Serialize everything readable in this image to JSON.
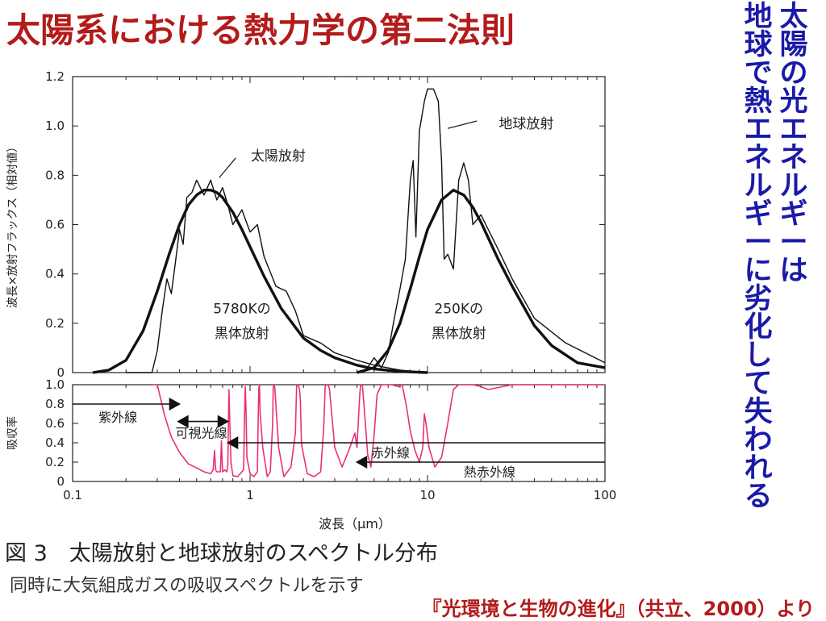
{
  "slide": {
    "title": "太陽系における熱力学の第二法則",
    "vertical_col1": "太陽の光エネルギーは",
    "vertical_col2": "地球で熱エネルギーに劣化して失われる",
    "caption_main": "図 3　太陽放射と地球放射のスペクトル分布",
    "caption_sub": "同時に大気組成ガスの吸収スペクトルを示す",
    "source": "『光環境と生物の進化』（共立、2000）より"
  },
  "colors": {
    "title": "#b31b1b",
    "vertical": "#1a1aa8",
    "absorption": "#e8307a",
    "curves": "#111111"
  },
  "chart_data": [
    {
      "type": "line",
      "x_scale": "log",
      "xlim": [
        0.1,
        100
      ],
      "ylim": [
        0,
        1.2
      ],
      "ylabel": "波長×放射フラックス（相対値）",
      "y_ticks": [
        "0",
        "0.2",
        "0.4",
        "0.6",
        "0.8",
        "1.0",
        "1.2"
      ],
      "annotations": [
        {
          "text": "太陽放射",
          "x": 1.6,
          "y": 0.86
        },
        {
          "text": "地球放射",
          "x": 36,
          "y": 0.99
        },
        {
          "text": "5780Kの",
          "x": 0.9,
          "y": 0.24
        },
        {
          "text": "黒体放射",
          "x": 0.9,
          "y": 0.14
        },
        {
          "text": "250Kの",
          "x": 15,
          "y": 0.24
        },
        {
          "text": "黒体放射",
          "x": 15,
          "y": 0.14
        }
      ],
      "series": [
        {
          "name": "5780Kの黒体放射",
          "style": "thick",
          "x": [
            0.13,
            0.16,
            0.2,
            0.25,
            0.3,
            0.35,
            0.4,
            0.45,
            0.5,
            0.55,
            0.6,
            0.65,
            0.7,
            0.8,
            0.9,
            1.0,
            1.2,
            1.5,
            2.0,
            2.5,
            3.0,
            4.0,
            5.0,
            7.0,
            10.0
          ],
          "y": [
            0.0,
            0.01,
            0.05,
            0.17,
            0.33,
            0.48,
            0.6,
            0.68,
            0.72,
            0.74,
            0.74,
            0.73,
            0.71,
            0.65,
            0.58,
            0.51,
            0.39,
            0.26,
            0.14,
            0.09,
            0.06,
            0.03,
            0.015,
            0.005,
            0.0
          ]
        },
        {
          "name": "太陽放射",
          "style": "thin",
          "x": [
            0.2,
            0.25,
            0.28,
            0.3,
            0.32,
            0.34,
            0.36,
            0.38,
            0.4,
            0.42,
            0.44,
            0.47,
            0.5,
            0.55,
            0.6,
            0.65,
            0.7,
            0.75,
            0.8,
            0.9,
            1.0,
            1.1,
            1.2,
            1.4,
            1.6,
            1.8,
            2.0,
            2.5,
            3.0,
            4.0,
            5.0,
            7.0,
            10.0
          ],
          "y": [
            0.0,
            0.0,
            0.0,
            0.09,
            0.25,
            0.38,
            0.32,
            0.45,
            0.58,
            0.52,
            0.71,
            0.73,
            0.78,
            0.72,
            0.78,
            0.7,
            0.75,
            0.68,
            0.6,
            0.66,
            0.57,
            0.6,
            0.47,
            0.35,
            0.33,
            0.25,
            0.15,
            0.12,
            0.08,
            0.05,
            0.03,
            0.01,
            0.0
          ]
        },
        {
          "name": "250Kの黒体放射",
          "style": "thick",
          "x": [
            4.0,
            5.0,
            6.0,
            7.0,
            8.0,
            9.0,
            10.0,
            12.0,
            14.0,
            16.0,
            18.0,
            20.0,
            25.0,
            30.0,
            40.0,
            50.0,
            70.0,
            100.0
          ],
          "y": [
            0.0,
            0.02,
            0.09,
            0.2,
            0.34,
            0.47,
            0.58,
            0.7,
            0.74,
            0.72,
            0.67,
            0.61,
            0.46,
            0.35,
            0.19,
            0.11,
            0.04,
            0.02
          ]
        },
        {
          "name": "地球放射",
          "style": "thin",
          "x": [
            4.0,
            4.5,
            5.0,
            5.5,
            6.0,
            6.5,
            7.0,
            7.5,
            8.0,
            8.3,
            8.6,
            9.0,
            9.6,
            10.0,
            10.8,
            11.5,
            12.0,
            12.4,
            13.0,
            14.0,
            15.0,
            16.0,
            17.0,
            18.0,
            20.0,
            25.0,
            30.0,
            40.0,
            60.0,
            100.0
          ],
          "y": [
            0.0,
            0.01,
            0.06,
            0.02,
            0.08,
            0.22,
            0.34,
            0.46,
            0.78,
            0.86,
            0.55,
            0.98,
            1.1,
            1.15,
            1.15,
            1.1,
            0.86,
            0.46,
            0.48,
            0.42,
            0.78,
            0.85,
            0.78,
            0.6,
            0.64,
            0.5,
            0.38,
            0.22,
            0.12,
            0.04
          ]
        }
      ]
    },
    {
      "type": "line",
      "x_scale": "log",
      "xlim": [
        0.1,
        100
      ],
      "ylim": [
        0,
        1.0
      ],
      "xlabel": "波長（μm）",
      "ylabel": "吸収率",
      "x_ticks": [
        "0.1",
        "1",
        "10",
        "100"
      ],
      "y_ticks": [
        "0",
        "0.2",
        "0.4",
        "0.6",
        "0.8",
        "1.0"
      ],
      "series": [
        {
          "name": "吸収率",
          "x": [
            0.28,
            0.3,
            0.33,
            0.36,
            0.4,
            0.45,
            0.5,
            0.55,
            0.6,
            0.62,
            0.63,
            0.64,
            0.65,
            0.68,
            0.69,
            0.7,
            0.72,
            0.74,
            0.75,
            0.76,
            0.78,
            0.8,
            0.85,
            0.9,
            0.92,
            0.93,
            0.94,
            0.95,
            0.96,
            1.0,
            1.05,
            1.1,
            1.11,
            1.12,
            1.13,
            1.14,
            1.18,
            1.25,
            1.3,
            1.34,
            1.35,
            1.37,
            1.38,
            1.45,
            1.55,
            1.7,
            1.8,
            1.83,
            1.85,
            1.87,
            1.9,
            1.92,
            1.95,
            2.1,
            2.3,
            2.5,
            2.6,
            2.65,
            2.7,
            2.75,
            2.8,
            3.0,
            3.3,
            3.6,
            3.9,
            4.0,
            4.15,
            4.2,
            4.25,
            4.3,
            4.4,
            4.6,
            4.8,
            5.0,
            5.2,
            5.5,
            6.0,
            6.3,
            6.8,
            7.2,
            7.6,
            8.0,
            8.5,
            9.0,
            9.4,
            9.6,
            9.8,
            10.2,
            11.0,
            12.0,
            13.0,
            14.0,
            15.0,
            16.0,
            17.0,
            18.0,
            20.0,
            22.0,
            30.0,
            100.0
          ],
          "y": [
            1.0,
            1.0,
            0.68,
            0.46,
            0.3,
            0.18,
            0.14,
            0.1,
            0.08,
            0.12,
            0.32,
            0.12,
            0.1,
            0.1,
            0.42,
            0.1,
            0.12,
            0.1,
            0.18,
            0.95,
            0.2,
            0.06,
            0.05,
            0.1,
            0.12,
            0.65,
            0.98,
            0.7,
            0.25,
            0.08,
            0.05,
            0.1,
            0.6,
            0.96,
            1.0,
            0.7,
            0.35,
            0.05,
            0.1,
            0.6,
            0.97,
            1.0,
            0.95,
            0.35,
            0.05,
            0.15,
            0.5,
            0.98,
            1.0,
            1.0,
            0.95,
            0.85,
            0.38,
            0.08,
            0.05,
            0.1,
            0.55,
            0.98,
            1.0,
            1.0,
            0.96,
            0.35,
            0.15,
            0.32,
            0.5,
            0.35,
            0.9,
            1.0,
            1.0,
            0.98,
            0.75,
            0.28,
            0.15,
            0.48,
            0.9,
            1.0,
            1.0,
            1.0,
            0.98,
            1.0,
            0.78,
            0.52,
            0.32,
            0.2,
            0.35,
            0.7,
            0.6,
            0.35,
            0.15,
            0.25,
            0.6,
            0.95,
            1.0,
            1.0,
            1.0,
            1.0,
            0.98,
            0.95,
            1.0,
            1.0
          ]
        }
      ],
      "bands": [
        {
          "label": "紫外線",
          "from": 0.1,
          "to": 0.4,
          "y": 0.8
        },
        {
          "label": "可視光線",
          "from": 0.4,
          "to": 0.75,
          "y": 0.62
        },
        {
          "label": "赤外線",
          "from": 0.75,
          "to": 100,
          "y": 0.4
        },
        {
          "label": "熱赤外線",
          "from": 4,
          "to": 100,
          "y": 0.2
        }
      ]
    }
  ]
}
